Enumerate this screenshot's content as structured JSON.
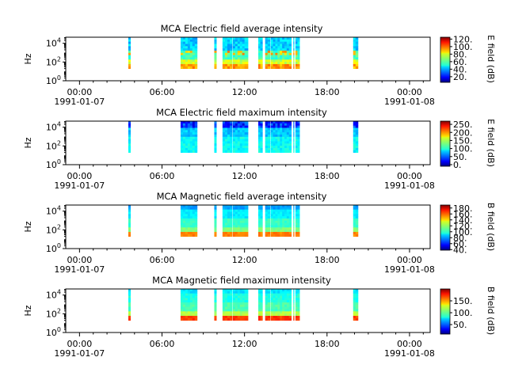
{
  "chart_data": [
    {
      "type": "heatmap",
      "title": "MCA  Electric field average intensity",
      "ylabel": "Hz",
      "colorbar_label": "E field (dB)",
      "colorbar_ticks": [
        "20.",
        "40.",
        "60.",
        "80.",
        "100.",
        "120."
      ],
      "colorbar_range": [
        5,
        125
      ],
      "y_scale": "log",
      "y_ticks": [
        "10^0",
        "10^2",
        "10^4"
      ],
      "x_ticks": [
        {
          "time": "00:00",
          "date": "1991-01-07"
        },
        {
          "time": "06:00",
          "date": ""
        },
        {
          "time": "12:00",
          "date": ""
        },
        {
          "time": "18:00",
          "date": ""
        },
        {
          "time": "00:00",
          "date": "1991-01-08"
        }
      ],
      "xlim_hours": [
        -1,
        25.5
      ],
      "data_intervals_hours": [
        [
          3.55,
          3.7
        ],
        [
          7.35,
          8.55
        ],
        [
          9.8,
          9.95
        ],
        [
          10.4,
          11.1
        ],
        [
          11.15,
          12.0
        ],
        [
          12.0,
          12.25
        ],
        [
          13.0,
          13.3
        ],
        [
          13.5,
          13.85
        ],
        [
          13.9,
          15.4
        ],
        [
          15.55,
          15.6
        ],
        [
          15.7,
          16.0
        ],
        [
          19.9,
          20.25
        ]
      ]
    },
    {
      "type": "heatmap",
      "title": "MCA  Electric field maximum intensity",
      "ylabel": "Hz",
      "colorbar_label": "E field (dB)",
      "colorbar_ticks": [
        "0.",
        "50.",
        "100.",
        "150.",
        "200.",
        "250."
      ],
      "colorbar_range": [
        -10,
        270
      ],
      "y_scale": "log",
      "y_ticks": [
        "10^0",
        "10^2",
        "10^4"
      ],
      "x_ticks": [
        {
          "time": "00:00",
          "date": "1991-01-07"
        },
        {
          "time": "06:00",
          "date": ""
        },
        {
          "time": "12:00",
          "date": ""
        },
        {
          "time": "18:00",
          "date": ""
        },
        {
          "time": "00:00",
          "date": "1991-01-08"
        }
      ],
      "xlim_hours": [
        -1,
        25.5
      ],
      "data_intervals_hours": [
        [
          3.55,
          3.7
        ],
        [
          7.35,
          8.55
        ],
        [
          9.8,
          9.95
        ],
        [
          10.4,
          11.1
        ],
        [
          11.15,
          12.0
        ],
        [
          12.0,
          12.25
        ],
        [
          13.0,
          13.3
        ],
        [
          13.5,
          13.85
        ],
        [
          13.9,
          15.4
        ],
        [
          15.55,
          15.6
        ],
        [
          15.7,
          16.0
        ],
        [
          19.9,
          20.25
        ]
      ]
    },
    {
      "type": "heatmap",
      "title": "MCA  Magnetic field average intensity",
      "ylabel": "Hz",
      "colorbar_label": "B field (dB)",
      "colorbar_ticks": [
        "40.",
        "60.",
        "80.",
        "100.",
        "120.",
        "140.",
        "160.",
        "180."
      ],
      "colorbar_range": [
        38,
        190
      ],
      "y_scale": "log",
      "y_ticks": [
        "10^0",
        "10^2",
        "10^4"
      ],
      "x_ticks": [
        {
          "time": "00:00",
          "date": "1991-01-07"
        },
        {
          "time": "06:00",
          "date": ""
        },
        {
          "time": "12:00",
          "date": ""
        },
        {
          "time": "18:00",
          "date": ""
        },
        {
          "time": "00:00",
          "date": "1991-01-08"
        }
      ],
      "xlim_hours": [
        -1,
        25.5
      ],
      "data_intervals_hours": [
        [
          3.55,
          3.7
        ],
        [
          7.35,
          8.55
        ],
        [
          9.8,
          9.95
        ],
        [
          10.4,
          11.1
        ],
        [
          11.15,
          12.0
        ],
        [
          12.0,
          12.25
        ],
        [
          13.0,
          13.3
        ],
        [
          13.5,
          13.85
        ],
        [
          13.9,
          15.4
        ],
        [
          15.55,
          15.6
        ],
        [
          15.7,
          16.0
        ],
        [
          19.9,
          20.25
        ]
      ]
    },
    {
      "type": "heatmap",
      "title": "MCA  Magnetic field maximum intensity",
      "ylabel": "Hz",
      "colorbar_label": "B field (dB)",
      "colorbar_ticks": [
        "50.",
        "100.",
        "150."
      ],
      "colorbar_range": [
        10,
        200
      ],
      "y_scale": "log",
      "y_ticks": [
        "10^0",
        "10^2",
        "10^4"
      ],
      "x_ticks": [
        {
          "time": "00:00",
          "date": "1991-01-07"
        },
        {
          "time": "06:00",
          "date": ""
        },
        {
          "time": "12:00",
          "date": ""
        },
        {
          "time": "18:00",
          "date": ""
        },
        {
          "time": "00:00",
          "date": "1991-01-08"
        }
      ],
      "xlim_hours": [
        -1,
        25.5
      ],
      "data_intervals_hours": [
        [
          3.55,
          3.7
        ],
        [
          7.35,
          8.55
        ],
        [
          9.8,
          9.95
        ],
        [
          10.4,
          11.1
        ],
        [
          11.15,
          12.0
        ],
        [
          12.0,
          12.25
        ],
        [
          13.0,
          13.3
        ],
        [
          13.5,
          13.85
        ],
        [
          13.9,
          15.4
        ],
        [
          15.55,
          15.6
        ],
        [
          15.7,
          16.0
        ],
        [
          19.9,
          20.25
        ]
      ]
    }
  ]
}
